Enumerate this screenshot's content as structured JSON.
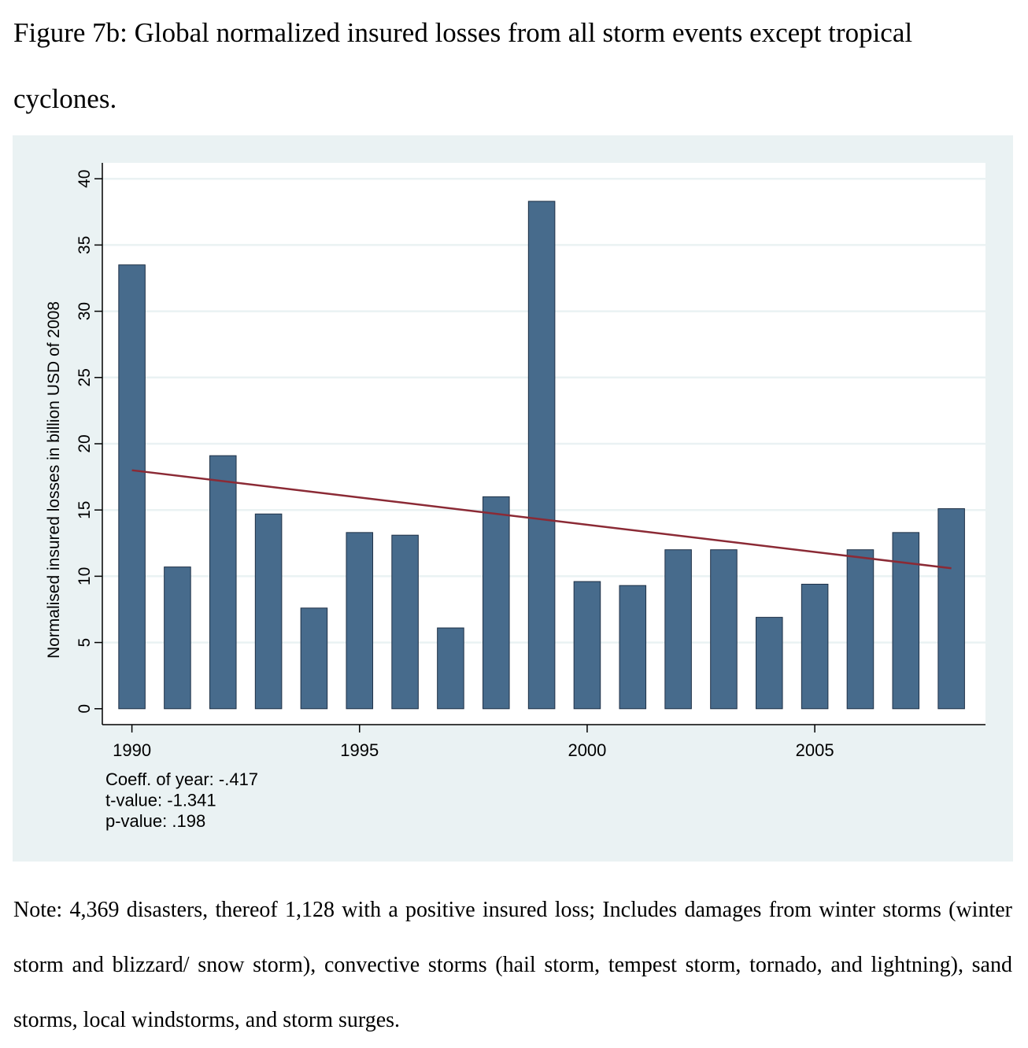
{
  "caption": "Figure 7b: Global normalized insured losses from all storm events except tropical cyclones.",
  "note": "Note: 4,369 disasters, thereof 1,128 with a positive insured loss; Includes damages from winter storms (winter storm and blizzard/ snow storm), convective storms (hail storm, tempest storm, tornado, and lightning), sand storms, local windstorms, and storm surges.",
  "colors": {
    "bar": "#476b8c",
    "bar_edge": "#1f3147",
    "trend": "#8b2a35",
    "plot_bg": "#ffffff",
    "outer_bg": "#eaf2f3",
    "grid": "#eaf2f3"
  },
  "chart_data": {
    "type": "bar",
    "title": "",
    "xlabel": "",
    "ylabel": "Normalised insured losses in billion USD of 2008",
    "x": [
      1990,
      1991,
      1992,
      1993,
      1994,
      1995,
      1996,
      1997,
      1998,
      1999,
      2000,
      2001,
      2002,
      2003,
      2004,
      2005,
      2006,
      2007,
      2008
    ],
    "values": [
      33.5,
      10.7,
      19.1,
      14.7,
      7.6,
      13.3,
      13.1,
      6.1,
      16.0,
      38.3,
      9.6,
      9.3,
      12.0,
      12.0,
      6.9,
      9.4,
      12.0,
      13.3,
      15.1
    ],
    "trend": {
      "type": "linear",
      "start": [
        1990,
        18.0
      ],
      "end": [
        2008,
        10.6
      ]
    },
    "xlim": [
      1989.35,
      2008.75
    ],
    "ylim": [
      -1.2,
      41.2
    ],
    "xticks": [
      1990,
      1995,
      2000,
      2005
    ],
    "xtick_labels": [
      "1990",
      "1995",
      "2000",
      "2005"
    ],
    "yticks": [
      0,
      5,
      10,
      15,
      20,
      25,
      30,
      35,
      40
    ],
    "ytick_labels": [
      "0",
      "5",
      "10",
      "15",
      "20",
      "25",
      "30",
      "35",
      "40"
    ],
    "grid": true,
    "legend": "none",
    "annotations": [
      "Coeff. of year: -.417",
      "t-value: -1.341",
      "p-value: .198"
    ]
  }
}
